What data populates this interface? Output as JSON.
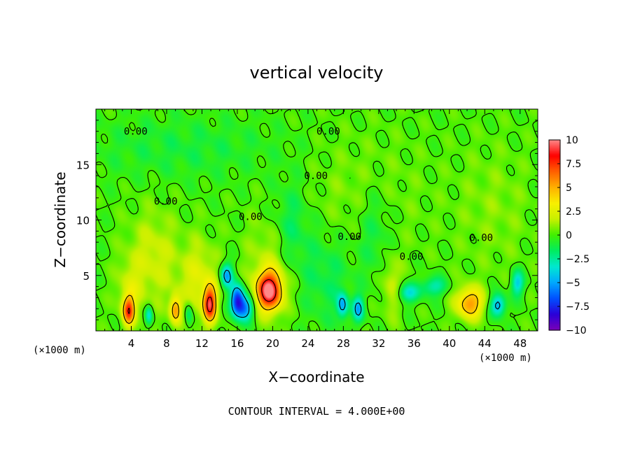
{
  "chart_data": {
    "type": "heatmap",
    "title": "vertical velocity",
    "xlabel": "X−coordinate",
    "ylabel": "Z−coordinate",
    "x_unit_left": "(×1000 m)",
    "x_unit_right": "(×1000 m)",
    "footer": "CONTOUR INTERVAL = 4.000E+00",
    "xlim": [
      0,
      50
    ],
    "ylim": [
      0,
      20
    ],
    "xticks": [
      {
        "value": 4,
        "label": "4"
      },
      {
        "value": 8,
        "label": "8"
      },
      {
        "value": 12,
        "label": "12"
      },
      {
        "value": 16,
        "label": "16"
      },
      {
        "value": 20,
        "label": "20"
      },
      {
        "value": 24,
        "label": "24"
      },
      {
        "value": 28,
        "label": "28"
      },
      {
        "value": 32,
        "label": "32"
      },
      {
        "value": 36,
        "label": "36"
      },
      {
        "value": 40,
        "label": "40"
      },
      {
        "value": 44,
        "label": "44"
      },
      {
        "value": 48,
        "label": "48"
      }
    ],
    "yticks": [
      {
        "value": 5,
        "label": "5"
      },
      {
        "value": 10,
        "label": "10"
      },
      {
        "value": 15,
        "label": "15"
      }
    ],
    "contour_labels": [
      {
        "x": 4.5,
        "y": 17.7,
        "label": "0.00"
      },
      {
        "x": 26.3,
        "y": 17.7,
        "label": "0.00"
      },
      {
        "x": 7.9,
        "y": 11.4,
        "label": "0.00"
      },
      {
        "x": 24.9,
        "y": 13.7,
        "label": "0.00"
      },
      {
        "x": 28.7,
        "y": 8.2,
        "label": "0.00"
      },
      {
        "x": 35.7,
        "y": 6.4,
        "label": "0.00"
      },
      {
        "x": 43.6,
        "y": 8.1,
        "label": "0.00"
      },
      {
        "x": 17.5,
        "y": 10.0,
        "label": "0.00"
      }
    ],
    "colorbar": {
      "min": -10,
      "max": 10,
      "ticks": [
        {
          "value": 10,
          "label": "10"
        },
        {
          "value": 7.5,
          "label": "7.5"
        },
        {
          "value": 5,
          "label": "5"
        },
        {
          "value": 2.5,
          "label": "2.5"
        },
        {
          "value": 0,
          "label": "0"
        },
        {
          "value": -2.5,
          "label": "−2.5"
        },
        {
          "value": -5,
          "label": "−5"
        },
        {
          "value": -7.5,
          "label": "−7.5"
        },
        {
          "value": -10,
          "label": "−10"
        }
      ],
      "colors": [
        "#7a00b8",
        "#2a00d8",
        "#0050ff",
        "#00a8ff",
        "#00e8d0",
        "#00ec60",
        "#40f000",
        "#c8f000",
        "#f8f000",
        "#ffb000",
        "#ff6000",
        "#ff0000",
        "#ff8888"
      ]
    },
    "features": [
      {
        "x": 3.7,
        "z": 1.8,
        "value": 6.5,
        "sx": 0.45,
        "sz": 0.9
      },
      {
        "x": 9.0,
        "z": 1.9,
        "value": 5.0,
        "sx": 0.45,
        "sz": 0.9
      },
      {
        "x": 12.9,
        "z": 2.4,
        "value": 8.0,
        "sx": 0.5,
        "sz": 1.1
      },
      {
        "x": 19.6,
        "z": 3.6,
        "value": 9.5,
        "sx": 1.0,
        "sz": 1.2
      },
      {
        "x": 42.3,
        "z": 2.5,
        "value": 5.5,
        "sx": 1.1,
        "sz": 1.0
      },
      {
        "x": 11.7,
        "z": 4.5,
        "value": 2.5,
        "sx": 1.5,
        "sz": 2.5
      },
      {
        "x": 6.5,
        "z": 6.5,
        "value": 2.0,
        "sx": 2.0,
        "sz": 3.0
      },
      {
        "x": 3.8,
        "z": 3.5,
        "value": 1.8,
        "sx": 1.0,
        "sz": 2.0
      },
      {
        "x": 20.0,
        "z": 6.0,
        "value": 1.8,
        "sx": 2.0,
        "sz": 3.0
      },
      {
        "x": 33.5,
        "z": 4.0,
        "value": 2.0,
        "sx": 0.8,
        "sz": 2.0
      },
      {
        "x": 16.0,
        "z": 2.7,
        "value": -8.0,
        "sx": 0.55,
        "sz": 1.0
      },
      {
        "x": 17.0,
        "z": 2.0,
        "value": -5.0,
        "sx": 0.6,
        "sz": 0.8
      },
      {
        "x": 14.8,
        "z": 5.0,
        "value": -5.0,
        "sx": 0.5,
        "sz": 0.8
      },
      {
        "x": 6.0,
        "z": 1.4,
        "value": -3.5,
        "sx": 0.3,
        "sz": 0.6
      },
      {
        "x": 27.9,
        "z": 2.3,
        "value": -4.5,
        "sx": 0.45,
        "sz": 0.8
      },
      {
        "x": 29.7,
        "z": 2.0,
        "value": -4.5,
        "sx": 0.45,
        "sz": 0.8
      },
      {
        "x": 35.3,
        "z": 3.4,
        "value": -3.5,
        "sx": 0.9,
        "sz": 0.6
      },
      {
        "x": 38.2,
        "z": 4.0,
        "value": -3.0,
        "sx": 1.0,
        "sz": 0.6
      },
      {
        "x": 45.5,
        "z": 2.3,
        "value": -5.0,
        "sx": 0.6,
        "sz": 0.7
      },
      {
        "x": 47.7,
        "z": 4.3,
        "value": -4.0,
        "sx": 0.5,
        "sz": 0.8
      },
      {
        "x": 10.5,
        "z": 1.5,
        "value": -2.5,
        "sx": 0.35,
        "sz": 0.8
      },
      {
        "x": 22.0,
        "z": 9.0,
        "value": -2.0,
        "sx": 1.5,
        "sz": 3.0
      },
      {
        "x": 26.0,
        "z": 5.0,
        "value": -1.5,
        "sx": 2.0,
        "sz": 3.0
      },
      {
        "x": 31.5,
        "z": 9.0,
        "value": -1.5,
        "sx": 1.5,
        "sz": 3.0
      },
      {
        "x": 10.0,
        "z": 16.5,
        "value": -1.0,
        "sx": 8.0,
        "sz": 2.0
      },
      {
        "x": 30.0,
        "z": 12.0,
        "value": 0.8,
        "sx": 5.0,
        "sz": 4.0
      },
      {
        "x": 45.0,
        "z": 11.0,
        "value": 0.8,
        "sx": 3.0,
        "sz": 4.0
      }
    ]
  }
}
